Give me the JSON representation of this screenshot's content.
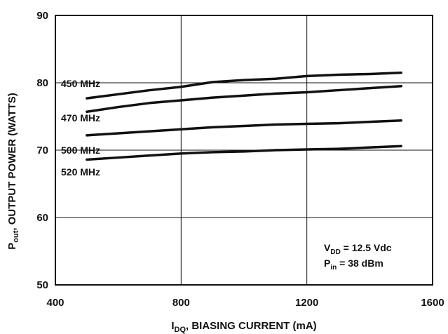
{
  "chart_data": {
    "type": "line",
    "xlabel": {
      "main": "I",
      "sub": "DQ",
      "rest": ", BIASING CURRENT (mA)"
    },
    "ylabel": {
      "main": "P",
      "sub": "out",
      "rest": ", OUTPUT POWER (WATTS)"
    },
    "xlim": [
      400,
      1600
    ],
    "ylim": [
      50,
      90
    ],
    "xticks": [
      400,
      800,
      1200,
      1600
    ],
    "yticks": [
      50,
      60,
      70,
      80,
      90
    ],
    "grid": true,
    "x": [
      500,
      600,
      700,
      800,
      900,
      1000,
      1100,
      1200,
      1300,
      1400,
      1500
    ],
    "series": [
      {
        "name": "450 MHz",
        "values": [
          77.7,
          78.3,
          78.9,
          79.4,
          80.1,
          80.4,
          80.6,
          81.0,
          81.2,
          81.3,
          81.5
        ]
      },
      {
        "name": "470 MHz",
        "values": [
          75.7,
          76.4,
          77.0,
          77.4,
          77.8,
          78.1,
          78.4,
          78.6,
          78.9,
          79.2,
          79.5
        ]
      },
      {
        "name": "500 MHz",
        "values": [
          72.2,
          72.5,
          72.8,
          73.1,
          73.4,
          73.6,
          73.8,
          73.9,
          74.0,
          74.2,
          74.4
        ]
      },
      {
        "name": "520 MHz",
        "values": [
          68.6,
          68.9,
          69.2,
          69.5,
          69.7,
          69.8,
          70.0,
          70.1,
          70.2,
          70.4,
          70.6
        ]
      }
    ],
    "annotation": {
      "line1": {
        "main": "V",
        "sub": "DD",
        "rest": " = 12.5 Vdc"
      },
      "line2": {
        "main": "P",
        "sub": "in",
        "rest": " = 38 dBm"
      }
    }
  }
}
